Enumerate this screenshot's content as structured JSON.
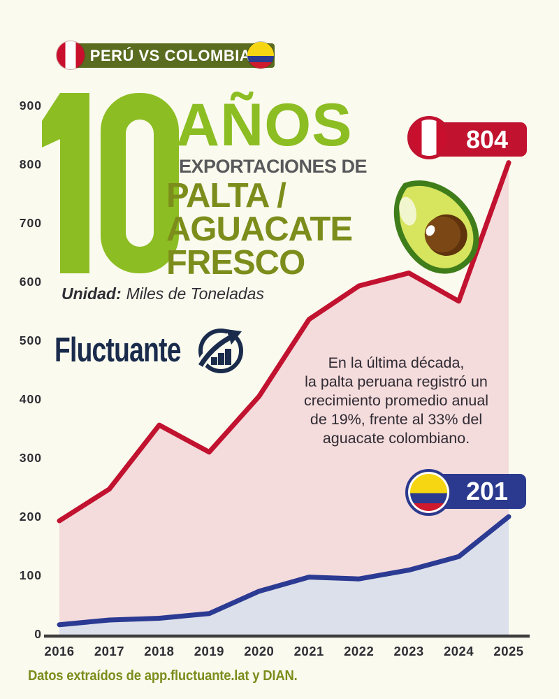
{
  "banner": {
    "title": "PERÚ VS COLOMBIA"
  },
  "title_block": {
    "big_number": "10",
    "years_label": "AÑOS",
    "subtitle": "EXPORTACIONES DE",
    "product": "PALTA /\nAGUACATE\nFRESCO",
    "unit_label": "Unidad:",
    "unit_value": "Miles de Toneladas"
  },
  "logo": {
    "text": "Fluctuante"
  },
  "peru_badge": {
    "value": "804"
  },
  "colombia_badge": {
    "value": "201"
  },
  "annotation": {
    "text": "En la última década,\nla palta peruana registró un\ncrecimiento promedio anual\nde 19%, frente al 33% del\naguacate colombiano."
  },
  "footer": {
    "text": "Datos extraídos de app.fluctuante.lat y DIAN."
  },
  "colors": {
    "background": "#FAFAEE",
    "bright_green": "#8CBD22",
    "olive_green": "#7C8D1C",
    "banner_olive": "#5A6C20",
    "peru_red": "#C1122F",
    "peru_area_fill": "#F4DBDC",
    "colombia_blue": "#2B3A92",
    "colombia_area_fill": "#DCE0EA",
    "navy_text": "#1A2B4C",
    "axis_dark": "#3D3D3D"
  },
  "chart_data": {
    "type": "area",
    "title": "10 años — Exportaciones de palta / aguacate fresco",
    "unit": "Miles de Toneladas",
    "x": [
      2016,
      2017,
      2018,
      2019,
      2020,
      2021,
      2022,
      2023,
      2024,
      2025
    ],
    "series": [
      {
        "name": "Perú",
        "color": "#C1122F",
        "fill": "#F4DBDC",
        "values": [
          194,
          248,
          357,
          311,
          406,
          537,
          594,
          616,
          568,
          804
        ]
      },
      {
        "name": "Colombia",
        "color": "#2B3A92",
        "fill": "#DCE0EA",
        "values": [
          17,
          25,
          28,
          36,
          74,
          98,
          95,
          110,
          133,
          201
        ]
      }
    ],
    "ylim": [
      0,
      900
    ],
    "yticks": [
      0,
      100,
      200,
      300,
      400,
      500,
      600,
      700,
      800,
      900
    ],
    "grid": false,
    "legend_position": "flag badges at line ends",
    "peru_growth_annual": "19%",
    "colombia_growth_annual": "33%"
  }
}
